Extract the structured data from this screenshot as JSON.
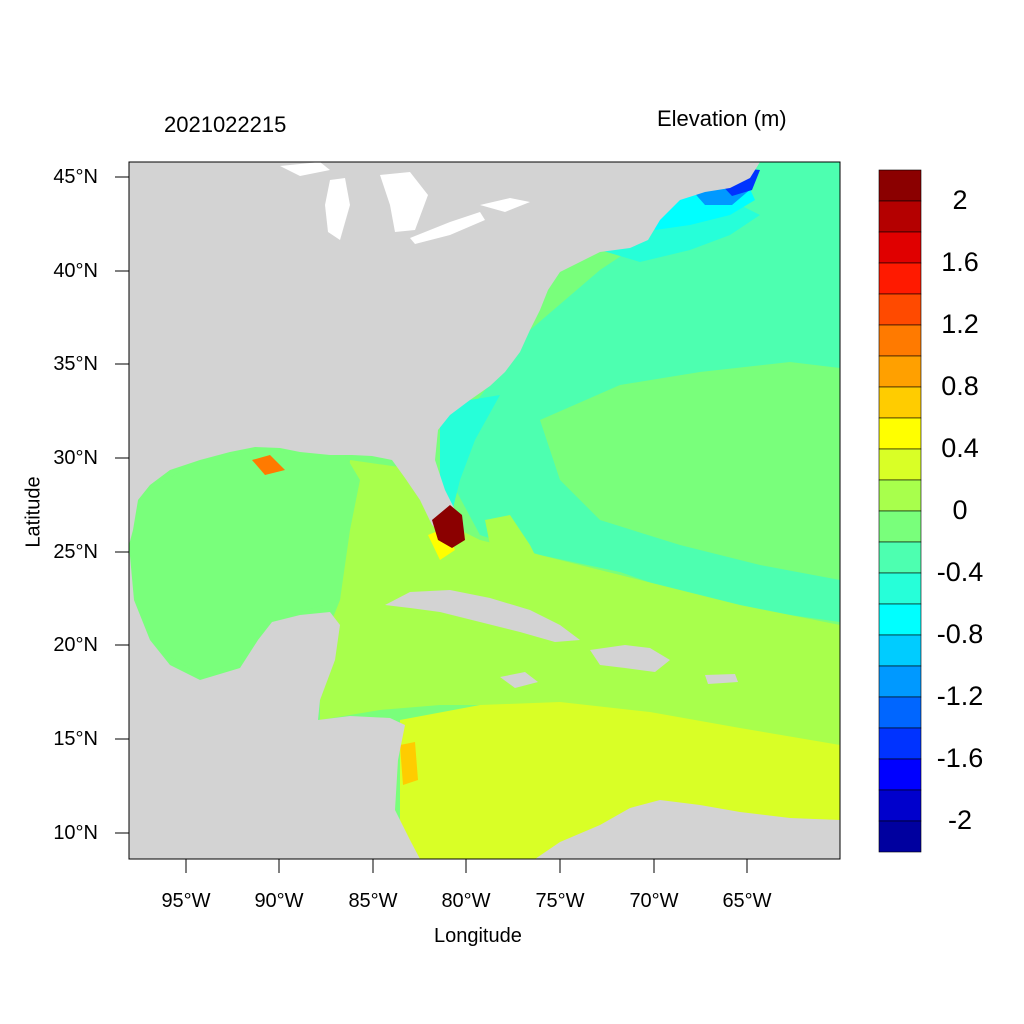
{
  "header": {
    "date_label": "2021022215",
    "field_title": "Elevation (m)"
  },
  "axes": {
    "x_title": "Longitude",
    "y_title": "Latitude",
    "lat_ticks": [
      "45°N",
      "40°N",
      "35°N",
      "30°N",
      "25°N",
      "20°N",
      "15°N",
      "10°N"
    ],
    "lon_ticks": [
      "95°W",
      "90°W",
      "85°W",
      "80°W",
      "75°W",
      "70°W",
      "65°W"
    ]
  },
  "colorbar": {
    "labels": [
      "2",
      "1.6",
      "1.2",
      "0.8",
      "0.4",
      "0",
      "-0.4",
      "-0.8",
      "-1.2",
      "-1.6",
      "-2"
    ],
    "colors": [
      "#8b0000",
      "#b40000",
      "#e00000",
      "#ff1a00",
      "#ff4a00",
      "#ff7a00",
      "#ffa000",
      "#ffcc00",
      "#ffff00",
      "#d9ff26",
      "#a8ff4c",
      "#79ff7b",
      "#4dffb0",
      "#26ffd9",
      "#00ffff",
      "#00ccff",
      "#0099ff",
      "#0066ff",
      "#0033ff",
      "#0000ff",
      "#0000cc",
      "#00009f"
    ]
  },
  "map": {
    "land_color": "#d3d3d3",
    "lake_color": "#ffffff"
  }
}
